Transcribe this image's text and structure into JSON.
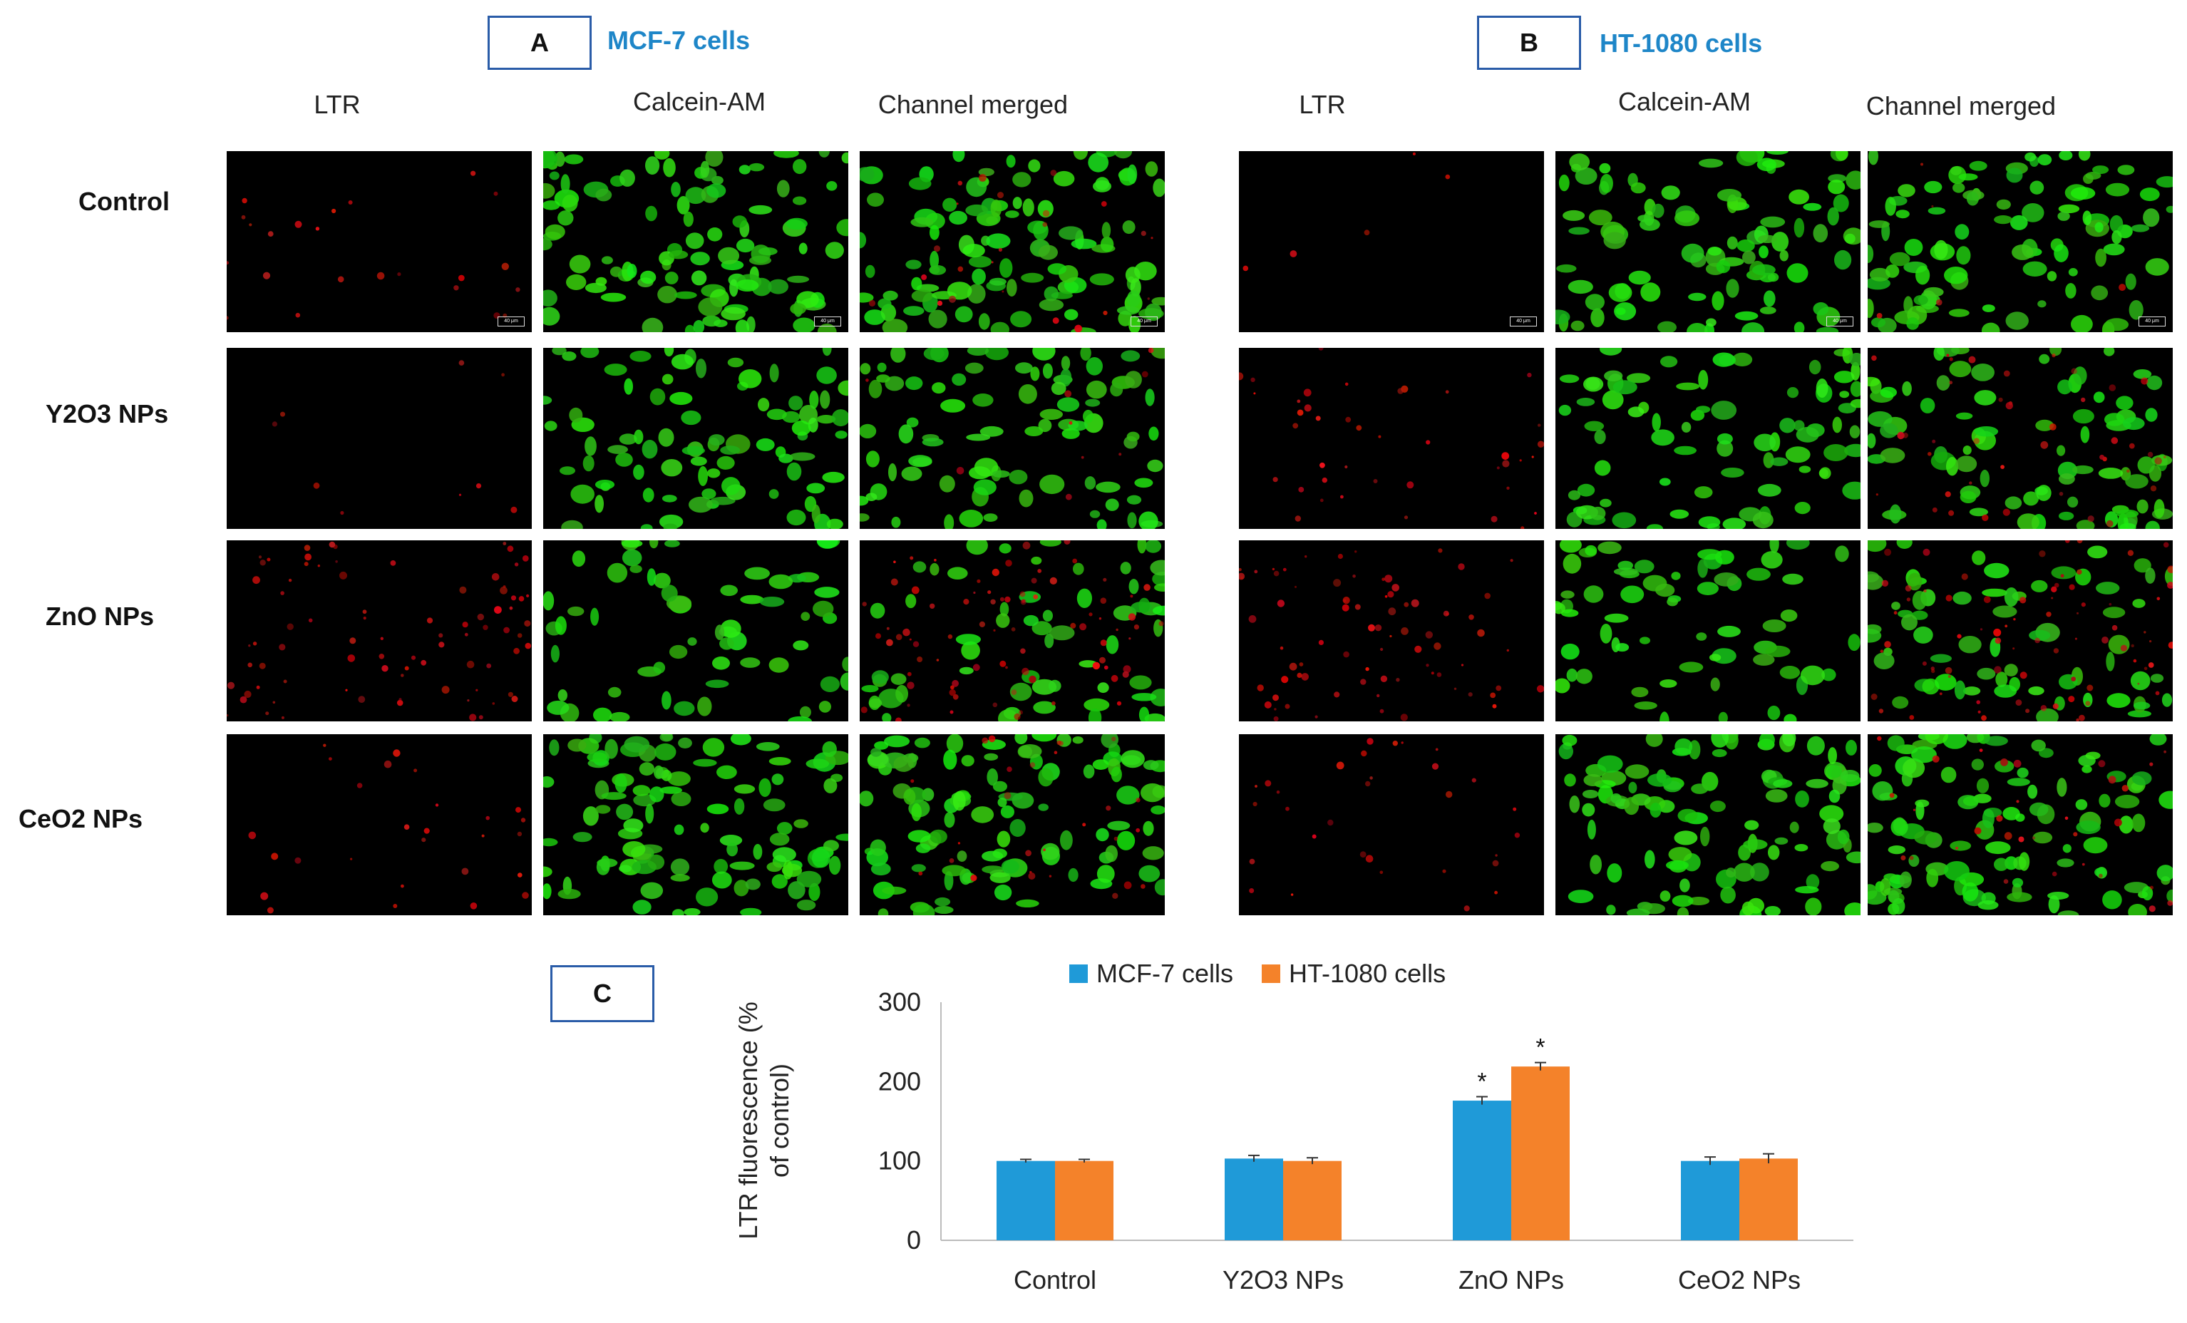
{
  "panel_a": {
    "label": "A",
    "title": "MCF-7 cells"
  },
  "panel_b": {
    "label": "B",
    "title": "HT-1080 cells"
  },
  "panel_c": {
    "label": "C"
  },
  "columns": [
    "LTR",
    "Calcein-AM",
    "Channel merged"
  ],
  "rows": [
    "Control",
    "Y2O3 NPs",
    "ZnO NPs",
    "CeO2 NPs"
  ],
  "scale_bar": "40 μm",
  "colors": {
    "mcf7": "#1f9ad8",
    "ht1080": "#f4822a",
    "box_border": "#2a5ca8",
    "title": "#1e86c8"
  },
  "chart_data": {
    "type": "bar",
    "categories": [
      "Control",
      "Y2O3 NPs",
      "ZnO NPs",
      "CeO2 NPs"
    ],
    "series": [
      {
        "name": "MCF-7 cells",
        "values": [
          100,
          103,
          176,
          100
        ],
        "errors": [
          2,
          4,
          5,
          5
        ],
        "color": "#1f9ad8"
      },
      {
        "name": "HT-1080 cells",
        "values": [
          100,
          100,
          219,
          103
        ],
        "errors": [
          2,
          4,
          5,
          6
        ],
        "color": "#f4822a"
      }
    ],
    "significance": [
      {
        "category": "ZnO NPs",
        "series": "MCF-7 cells",
        "mark": "*"
      },
      {
        "category": "ZnO NPs",
        "series": "HT-1080 cells",
        "mark": "*"
      }
    ],
    "ylabel": "LTR fluorescence (% of control)",
    "yticks": [
      0,
      100,
      200,
      300
    ],
    "ylim": [
      0,
      300
    ],
    "legend": "top",
    "grid": false
  }
}
